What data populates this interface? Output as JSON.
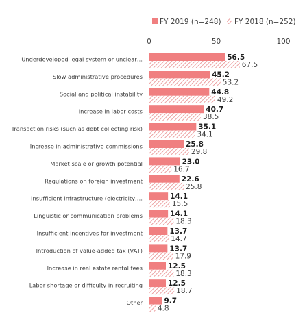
{
  "chart_data": {
    "type": "bar",
    "orientation": "horizontal",
    "categories": [
      "Underdeveloped legal system or unclear…",
      "Slow administrative procedures",
      "Social and political instability",
      "Increase in labor costs",
      "Transaction risks (such as debt collecting risk)",
      "Increase in administrative commissions",
      "Market scale or growth potential",
      "Regulations on foreign investment",
      "Insufficient infrastructure (electricity,…",
      "Linguistic or communication problems",
      "Insufficient incentives for investment",
      "Introduction of value-added tax (VAT)",
      "Increase in real estate rental fees",
      "Labor shortage or difficulty in recruiting",
      "Other"
    ],
    "series": [
      {
        "name": "FY 2019 (n=248)",
        "pattern": "solid",
        "color": "#f07f80",
        "values": [
          56.5,
          45.2,
          44.8,
          40.7,
          35.1,
          25.8,
          23.0,
          22.6,
          14.1,
          14.1,
          13.7,
          13.7,
          12.5,
          12.5,
          9.7
        ],
        "labels": [
          "56.5",
          "45.2",
          "44.8",
          "40.7",
          "35.1",
          "25.8",
          "23.0",
          "22.6",
          "14.1",
          "14.1",
          "13.7",
          "13.7",
          "12.5",
          "12.5",
          "9.7"
        ]
      },
      {
        "name": "FY 2018 (n=252)",
        "pattern": "hatched",
        "color": "#e88a8b",
        "values": [
          67.5,
          53.2,
          49.2,
          38.5,
          34.1,
          29.8,
          16.7,
          25.8,
          15.5,
          18.3,
          14.7,
          17.9,
          18.3,
          18.7,
          4.8
        ],
        "labels": [
          "67.5",
          "53.2",
          "49.2",
          "38.5",
          "34.1",
          "29.8",
          "16.7",
          "25.8",
          "15.5",
          "18.3",
          "14.7",
          "17.9",
          "18.3",
          "18.7",
          "4.8"
        ]
      }
    ],
    "xlim": [
      0,
      100
    ],
    "xticks": [
      "0",
      "50",
      "100"
    ],
    "grid": false,
    "legend_position": "top"
  }
}
